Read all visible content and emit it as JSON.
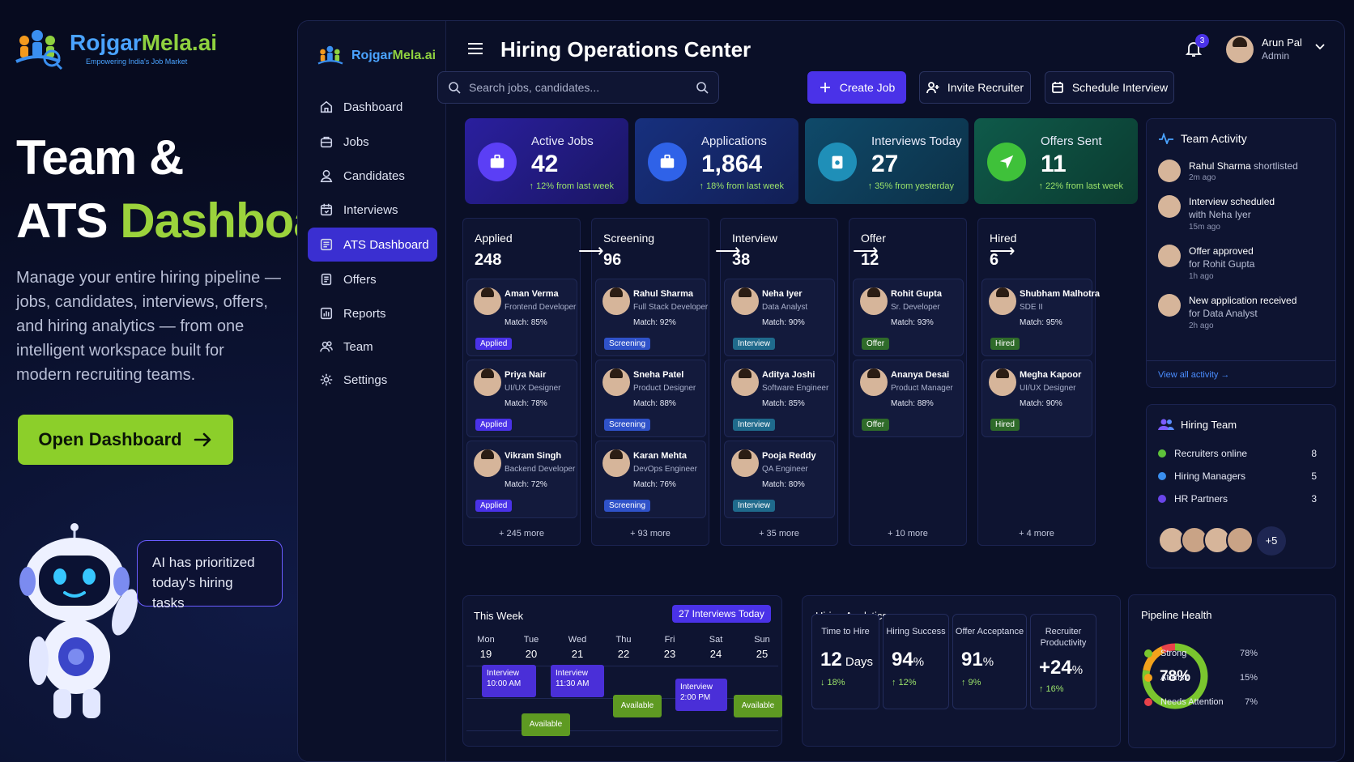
{
  "hero": {
    "brand_a": "Rojgar",
    "brand_b": "Mela.ai",
    "tagline": "Empowering India's Job Market",
    "title_line1": "Team &",
    "title_line2a": "ATS ",
    "title_line2b": "Dashboard",
    "description": "Manage your entire hiring pipeline — jobs, candidates, interviews, offers, and hiring analytics — from one intelligent workspace built for modern recruiting teams.",
    "cta": "Open Dashboard",
    "bubble": "AI has prioritized today's hiring tasks"
  },
  "sidebar": {
    "brand_a": "Rojgar",
    "brand_b": "Mela.ai",
    "items": [
      {
        "label": "Dashboard",
        "icon": "home-icon"
      },
      {
        "label": "Jobs",
        "icon": "briefcase-icon"
      },
      {
        "label": "Candidates",
        "icon": "user-icon"
      },
      {
        "label": "Interviews",
        "icon": "calendar-icon"
      },
      {
        "label": "ATS Dashboard",
        "icon": "board-icon"
      },
      {
        "label": "Offers",
        "icon": "document-icon"
      },
      {
        "label": "Reports",
        "icon": "chart-icon"
      },
      {
        "label": "Team",
        "icon": "team-icon"
      },
      {
        "label": "Settings",
        "icon": "gear-icon"
      }
    ],
    "active_index": 4
  },
  "header": {
    "title": "Hiring Operations Center",
    "notifications": "3",
    "user_name": "Arun Pal",
    "user_role": "Admin"
  },
  "search": {
    "placeholder": "Search jobs, candidates..."
  },
  "actions": {
    "create_job": "Create Job",
    "invite_recruiter": "Invite Recruiter",
    "schedule_interview": "Schedule Interview"
  },
  "stats": [
    {
      "label": "Active Jobs",
      "value": "42",
      "change": "↑ 12% from last week"
    },
    {
      "label": "Applications",
      "value": "1,864",
      "change": "↑ 18% from last week"
    },
    {
      "label": "Interviews Today",
      "value": "27",
      "change": "↑ 35% from yesterday"
    },
    {
      "label": "Offers Sent",
      "value": "11",
      "change": "↑ 22% from last week"
    }
  ],
  "pipeline": [
    {
      "stage": "Applied",
      "count": "248",
      "more": "+ 245 more",
      "badge": "Applied",
      "badge_color": "#4a32e8",
      "candidates": [
        {
          "name": "Aman Verma",
          "role": "Frontend Developer",
          "match": "Match:  85%"
        },
        {
          "name": "Priya Nair",
          "role": "UI/UX Designer",
          "match": "Match:  78%"
        },
        {
          "name": "Vikram Singh",
          "role": "Backend Developer",
          "match": "Match:  72%"
        }
      ]
    },
    {
      "stage": "Screening",
      "count": "96",
      "more": "+ 93 more",
      "badge": "Screening",
      "badge_color": "#2f52c9",
      "candidates": [
        {
          "name": "Rahul Sharma",
          "role": "Full Stack Developer",
          "match": "Match:  92%"
        },
        {
          "name": "Sneha Patel",
          "role": "Product Designer",
          "match": "Match:  88%"
        },
        {
          "name": "Karan Mehta",
          "role": "DevOps Engineer",
          "match": "Match:  76%"
        }
      ]
    },
    {
      "stage": "Interview",
      "count": "38",
      "more": "+ 35 more",
      "badge": "Interview",
      "badge_color": "#1f6a8c",
      "candidates": [
        {
          "name": "Neha Iyer",
          "role": "Data Analyst",
          "match": "Match:  90%"
        },
        {
          "name": "Aditya Joshi",
          "role": "Software Engineer",
          "match": "Match:  85%"
        },
        {
          "name": "Pooja Reddy",
          "role": "QA Engineer",
          "match": "Match:  80%"
        }
      ]
    },
    {
      "stage": "Offer",
      "count": "12",
      "more": "+ 10 more",
      "badge": "Offer",
      "badge_color": "#2f6b2a",
      "candidates": [
        {
          "name": "Rohit Gupta",
          "role": "Sr. Developer",
          "match": "Match:  93%"
        },
        {
          "name": "Ananya Desai",
          "role": "Product Manager",
          "match": "Match:  88%"
        }
      ]
    },
    {
      "stage": "Hired",
      "count": "6",
      "more": "+ 4 more",
      "badge": "Hired",
      "badge_color": "#2f6b2a",
      "candidates": [
        {
          "name": "Shubham Malhotra",
          "role": "SDE II",
          "match": "Match:  95%"
        },
        {
          "name": "Megha Kapoor",
          "role": "UI/UX Designer",
          "match": "Match:  90%"
        }
      ]
    }
  ],
  "activity": {
    "title": "Team Activity",
    "items": [
      {
        "text": "Rahul Sharma",
        "sub": " shortlisted",
        "time": "2m ago"
      },
      {
        "text": "Interview scheduled",
        "sub": "with Neha Iyer",
        "time": "15m ago"
      },
      {
        "text": "Offer approved",
        "sub": "for Rohit Gupta",
        "time": "1h ago"
      },
      {
        "text": "New application received",
        "sub": "for Data Analyst",
        "time": "2h ago"
      }
    ],
    "view_all": "View all activity →"
  },
  "hiring_team": {
    "title": "Hiring Team",
    "rows": [
      {
        "label": "Recruiters online",
        "count": "8",
        "color": "#5ec23a"
      },
      {
        "label": "Hiring Managers",
        "count": "5",
        "color": "#3a8ff0"
      },
      {
        "label": "HR Partners",
        "count": "3",
        "color": "#6a45e8"
      }
    ],
    "extra": "+5"
  },
  "week": {
    "title": "This Week",
    "badge": "27 Interviews Today",
    "days": [
      {
        "d": "Mon",
        "n": "19"
      },
      {
        "d": "Tue",
        "n": "20"
      },
      {
        "d": "Wed",
        "n": "21"
      },
      {
        "d": "Thu",
        "n": "22"
      },
      {
        "d": "Fri",
        "n": "23"
      },
      {
        "d": "Sat",
        "n": "24"
      },
      {
        "d": "Sun",
        "n": "25"
      }
    ],
    "events": {
      "e1_title": "Interview",
      "e1_time": "10:00 AM",
      "e2_title": "Interview",
      "e2_time": "11:30 AM",
      "e3_title": "Interview",
      "e3_time": "2:00 PM",
      "avail1": "Available",
      "avail2": "Available",
      "avail3": "Available"
    }
  },
  "analytics": {
    "title": "Hiring Analytics",
    "metrics": [
      {
        "label": "Time to Hire",
        "value": "12",
        "unit": " Days",
        "change": "↓ 18%"
      },
      {
        "label": "Hiring Success",
        "value": "94",
        "unit": "%",
        "change": "↑ 12%"
      },
      {
        "label": "Offer Acceptance",
        "value": "91",
        "unit": "%",
        "change": "↑ 9%"
      },
      {
        "label": "Recruiter Productivity",
        "value": "+24",
        "unit": "%",
        "change": "↑ 16%"
      }
    ]
  },
  "pipeline_health": {
    "title": "Pipeline Health",
    "center": "78%",
    "rows": [
      {
        "label": "Strong",
        "value": "78%",
        "color": "#7ac62e"
      },
      {
        "label": "At Risk",
        "value": "15%",
        "color": "#f3a21c"
      },
      {
        "label": "Needs Attention",
        "value": "7%",
        "color": "#e8424a"
      }
    ],
    "fractions": [
      0.78,
      0.15,
      0.07
    ]
  }
}
